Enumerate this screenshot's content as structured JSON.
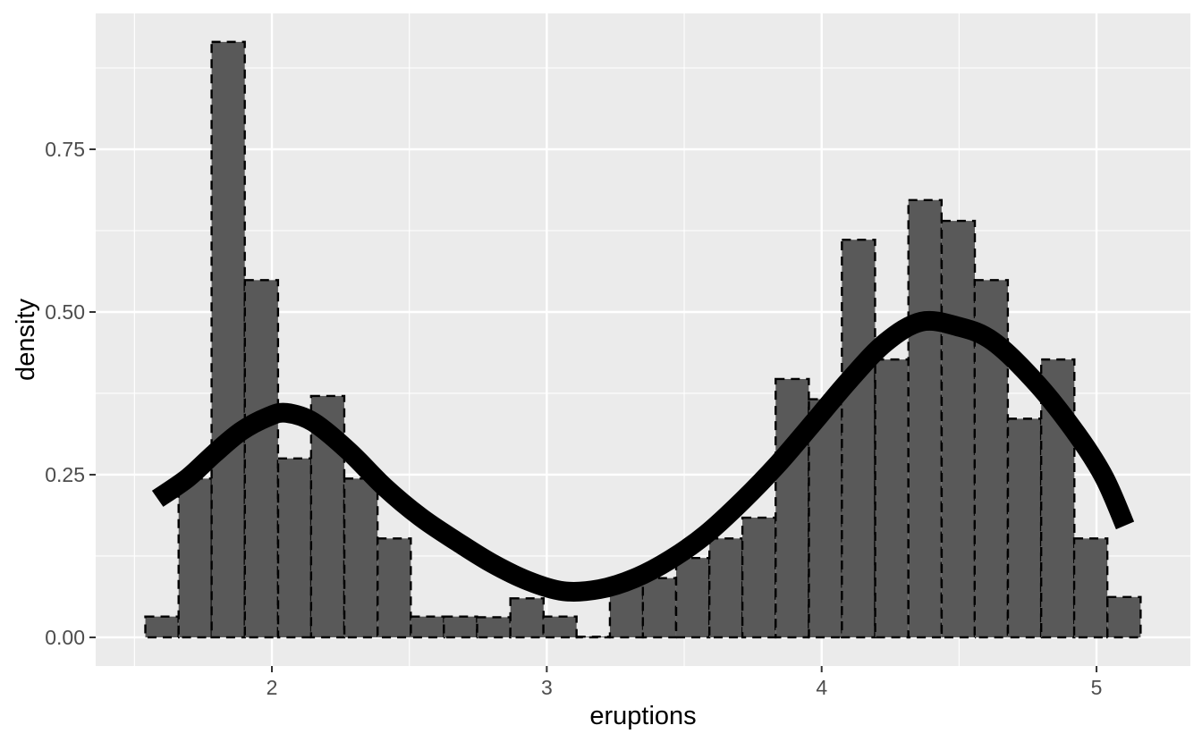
{
  "chart_data": {
    "type": "histogram+line",
    "title": "",
    "xlabel": "eruptions",
    "ylabel": "density",
    "xlim": [
      1.359,
      5.3414
    ],
    "ylim": [
      -0.044,
      0.9588
    ],
    "grid": "on",
    "legend": "none",
    "panel_background": "#ebebeb",
    "gridline_color": "#ffffff",
    "x_ticks": {
      "values": [
        2,
        3,
        4,
        5
      ],
      "labels": [
        "2",
        "3",
        "4",
        "5"
      ]
    },
    "y_ticks": {
      "values": [
        0,
        0.25,
        0.5,
        0.75
      ],
      "labels": [
        "0.00",
        "0.25",
        "0.50",
        "0.75"
      ]
    },
    "x_minor": [
      1.5,
      2.5,
      3.5,
      4.5
    ],
    "y_minor": [
      0.125,
      0.375,
      0.625,
      0.875
    ],
    "histogram": {
      "binwidth": 0.12069,
      "fill": "#595959",
      "border_color": "#000000",
      "border_style": "dashed",
      "bin_centers": [
        1.6,
        1.721,
        1.841,
        1.962,
        2.083,
        2.203,
        2.324,
        2.445,
        2.566,
        2.686,
        2.807,
        2.928,
        3.048,
        3.169,
        3.29,
        3.41,
        3.531,
        3.652,
        3.772,
        3.893,
        4.014,
        4.134,
        4.255,
        4.376,
        4.497,
        4.617,
        4.738,
        4.859,
        4.979,
        5.1
      ],
      "densities": [
        0.032,
        0.244,
        0.915,
        0.549,
        0.275,
        0.371,
        0.244,
        0.152,
        0.032,
        0.032,
        0.031,
        0.06,
        0.032,
        0.0,
        0.091,
        0.091,
        0.122,
        0.152,
        0.184,
        0.397,
        0.366,
        0.611,
        0.427,
        0.672,
        0.64,
        0.549,
        0.336,
        0.427,
        0.152,
        0.062
      ]
    },
    "density_curve": {
      "color": "#000000",
      "stroke_width": 22,
      "points": [
        [
          1.584,
          0.213
        ],
        [
          1.694,
          0.245
        ],
        [
          1.792,
          0.283
        ],
        [
          1.889,
          0.317
        ],
        [
          1.987,
          0.339
        ],
        [
          2.052,
          0.345
        ],
        [
          2.15,
          0.331
        ],
        [
          2.28,
          0.286
        ],
        [
          2.41,
          0.231
        ],
        [
          2.54,
          0.185
        ],
        [
          2.67,
          0.148
        ],
        [
          2.8,
          0.114
        ],
        [
          2.931,
          0.087
        ],
        [
          3.061,
          0.071
        ],
        [
          3.191,
          0.074
        ],
        [
          3.321,
          0.091
        ],
        [
          3.451,
          0.12
        ],
        [
          3.581,
          0.159
        ],
        [
          3.712,
          0.21
        ],
        [
          3.842,
          0.267
        ],
        [
          3.972,
          0.331
        ],
        [
          4.102,
          0.396
        ],
        [
          4.232,
          0.453
        ],
        [
          4.362,
          0.485
        ],
        [
          4.493,
          0.478
        ],
        [
          4.623,
          0.455
        ],
        [
          4.785,
          0.389
        ],
        [
          4.932,
          0.31
        ],
        [
          5.029,
          0.245
        ],
        [
          5.104,
          0.172
        ]
      ]
    },
    "tick_mark_color": "#333333",
    "tick_label_color": "#4d4d4d"
  }
}
